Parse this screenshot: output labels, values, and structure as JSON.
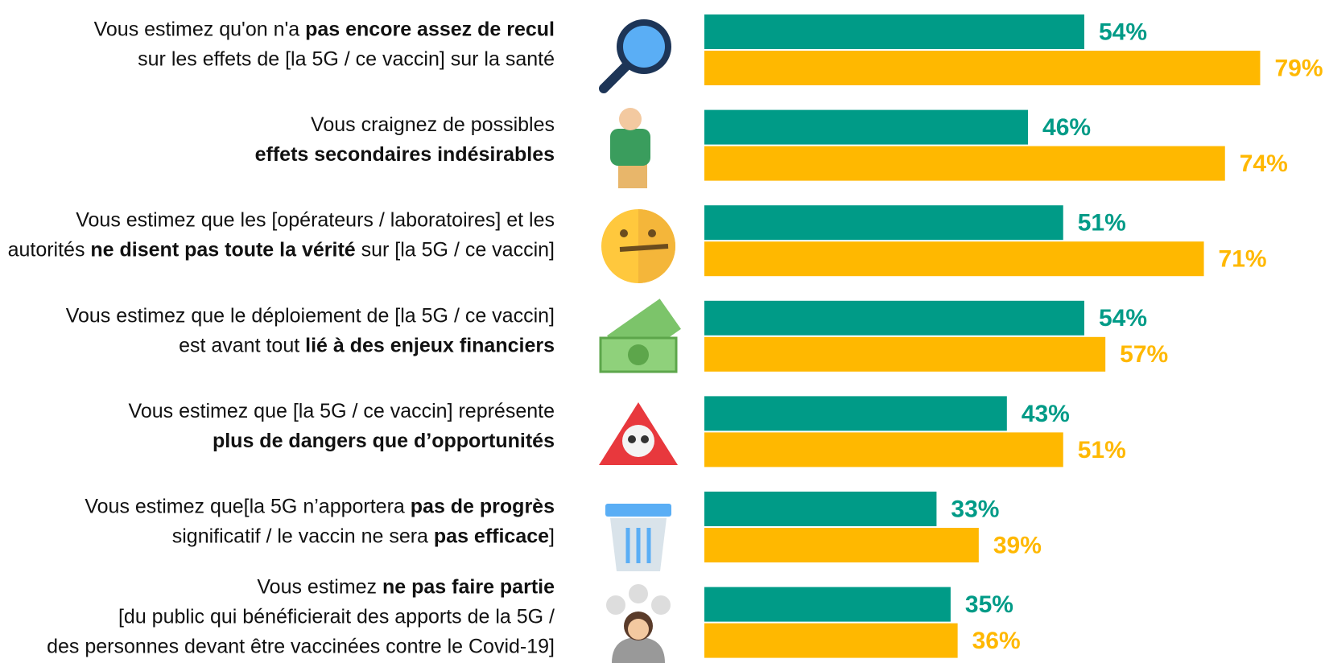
{
  "chart_data": {
    "type": "bar",
    "orientation": "horizontal",
    "categories": [
      [
        [
          {
            "text": "Vous estimez qu'on n'a ",
            "bold": false
          },
          {
            "text": "pas encore assez de recul",
            "bold": true
          }
        ],
        [
          {
            "text": "sur les effets de [la 5G / ce vaccin] sur la santé",
            "bold": false
          }
        ]
      ],
      [
        [
          {
            "text": "Vous craignez de possibles",
            "bold": false
          }
        ],
        [
          {
            "text": "effets secondaires indésirables",
            "bold": true
          }
        ]
      ],
      [
        [
          {
            "text": "Vous estimez que les [opérateurs / laboratoires] et les",
            "bold": false
          }
        ],
        [
          {
            "text": "autorités ",
            "bold": false
          },
          {
            "text": "ne disent pas toute la vérité",
            "bold": true
          },
          {
            "text": " sur [la 5G / ce vaccin]",
            "bold": false
          }
        ]
      ],
      [
        [
          {
            "text": "Vous estimez que le déploiement de [la 5G / ce vaccin]",
            "bold": false
          }
        ],
        [
          {
            "text": "est avant tout ",
            "bold": false
          },
          {
            "text": "lié à des enjeux financiers",
            "bold": true
          }
        ]
      ],
      [
        [
          {
            "text": "Vous estimez que [la 5G / ce vaccin] représente",
            "bold": false
          }
        ],
        [
          {
            "text": "plus de dangers que d’opportunités",
            "bold": true
          }
        ]
      ],
      [
        [
          {
            "text": "Vous estimez que[la 5G n’apportera ",
            "bold": false
          },
          {
            "text": "pas de progrès",
            "bold": true
          }
        ],
        [
          {
            "text": "significatif / le vaccin ne sera ",
            "bold": false
          },
          {
            "text": "pas efficace",
            "bold": true
          },
          {
            "text": "]",
            "bold": false
          }
        ]
      ],
      [
        [
          {
            "text": "Vous estimez ",
            "bold": false
          },
          {
            "text": "ne pas faire partie",
            "bold": true
          }
        ],
        [
          {
            "text": "[du public qui bénéficierait des apports de la 5G /",
            "bold": false
          }
        ],
        [
          {
            "text": "des personnes devant être vaccinées contre le Covid-19]",
            "bold": false
          }
        ]
      ]
    ],
    "series": [
      {
        "color": "#009b87",
        "values": [
          54,
          46,
          51,
          54,
          43,
          33,
          35
        ],
        "value_labels": [
          "54%",
          "46%",
          "51%",
          "54%",
          "43%",
          "33%",
          "35%"
        ]
      },
      {
        "color": "#ffb800",
        "values": [
          79,
          74,
          71,
          57,
          51,
          39,
          36
        ],
        "value_labels": [
          "79%",
          "74%",
          "71%",
          "57%",
          "51%",
          "39%",
          "36%"
        ]
      }
    ],
    "xlim": [
      0,
      100
    ]
  }
}
